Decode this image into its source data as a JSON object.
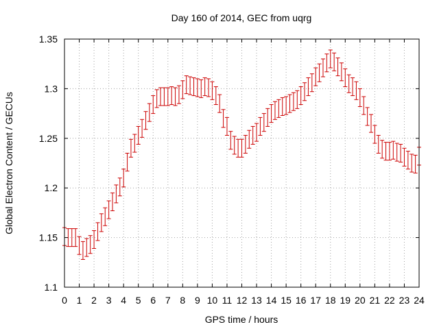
{
  "chart_data": {
    "type": "scatter",
    "title": "Day 160 of 2014, GEC from uqrg",
    "xlabel": "GPS time / hours",
    "ylabel": "Global Electron Content / GECUs",
    "xlim": [
      0,
      24
    ],
    "ylim": [
      1.1,
      1.35
    ],
    "xticks": [
      "0",
      "1",
      "2",
      "3",
      "4",
      "5",
      "6",
      "7",
      "8",
      "9",
      "10",
      "11",
      "12",
      "13",
      "14",
      "15",
      "16",
      "17",
      "18",
      "19",
      "20",
      "21",
      "22",
      "23",
      "24"
    ],
    "yticks": [
      "1.1",
      "1.15",
      "1.2",
      "1.25",
      "1.3",
      "1.35"
    ],
    "grid": true,
    "marker": "errorbar",
    "color": "#cc0000",
    "error": 0.009,
    "series": [
      {
        "x": [
          0,
          0.25,
          0.5,
          0.75,
          1,
          1.25,
          1.5,
          1.75,
          2,
          2.25,
          2.5,
          2.75,
          3,
          3.25,
          3.5,
          3.75,
          4,
          4.25,
          4.5,
          4.75,
          5,
          5.25,
          5.5,
          5.75,
          6,
          6.25,
          6.5,
          6.75,
          7,
          7.25,
          7.5,
          7.75,
          8,
          8.25,
          8.5,
          8.75,
          9,
          9.25,
          9.5,
          9.75,
          10,
          10.25,
          10.5,
          10.75,
          11,
          11.25,
          11.5,
          11.75,
          12,
          12.25,
          12.5,
          12.75,
          13,
          13.25,
          13.5,
          13.75,
          14,
          14.25,
          14.5,
          14.75,
          15,
          15.25,
          15.5,
          15.75,
          16,
          16.25,
          16.5,
          16.75,
          17,
          17.25,
          17.5,
          17.75,
          18,
          18.25,
          18.5,
          18.75,
          19,
          19.25,
          19.5,
          19.75,
          20,
          20.25,
          20.5,
          20.75,
          21,
          21.25,
          21.5,
          21.75,
          22,
          22.25,
          22.5,
          22.75,
          23,
          23.25,
          23.5,
          23.75,
          24
        ],
        "y": [
          1.151,
          1.15,
          1.15,
          1.15,
          1.142,
          1.137,
          1.14,
          1.143,
          1.148,
          1.156,
          1.165,
          1.171,
          1.178,
          1.186,
          1.194,
          1.201,
          1.21,
          1.226,
          1.24,
          1.245,
          1.253,
          1.26,
          1.268,
          1.276,
          1.284,
          1.29,
          1.292,
          1.292,
          1.292,
          1.293,
          1.292,
          1.294,
          1.299,
          1.304,
          1.303,
          1.302,
          1.301,
          1.3,
          1.302,
          1.301,
          1.298,
          1.293,
          1.285,
          1.27,
          1.262,
          1.248,
          1.243,
          1.24,
          1.24,
          1.244,
          1.249,
          1.253,
          1.256,
          1.262,
          1.266,
          1.271,
          1.275,
          1.278,
          1.28,
          1.282,
          1.283,
          1.285,
          1.287,
          1.289,
          1.293,
          1.297,
          1.302,
          1.306,
          1.312,
          1.316,
          1.321,
          1.326,
          1.33,
          1.327,
          1.322,
          1.317,
          1.311,
          1.305,
          1.302,
          1.298,
          1.291,
          1.283,
          1.272,
          1.265,
          1.254,
          1.244,
          1.239,
          1.237,
          1.237,
          1.238,
          1.236,
          1.235,
          1.231,
          1.228,
          1.225,
          1.224,
          1.232
        ]
      }
    ]
  }
}
